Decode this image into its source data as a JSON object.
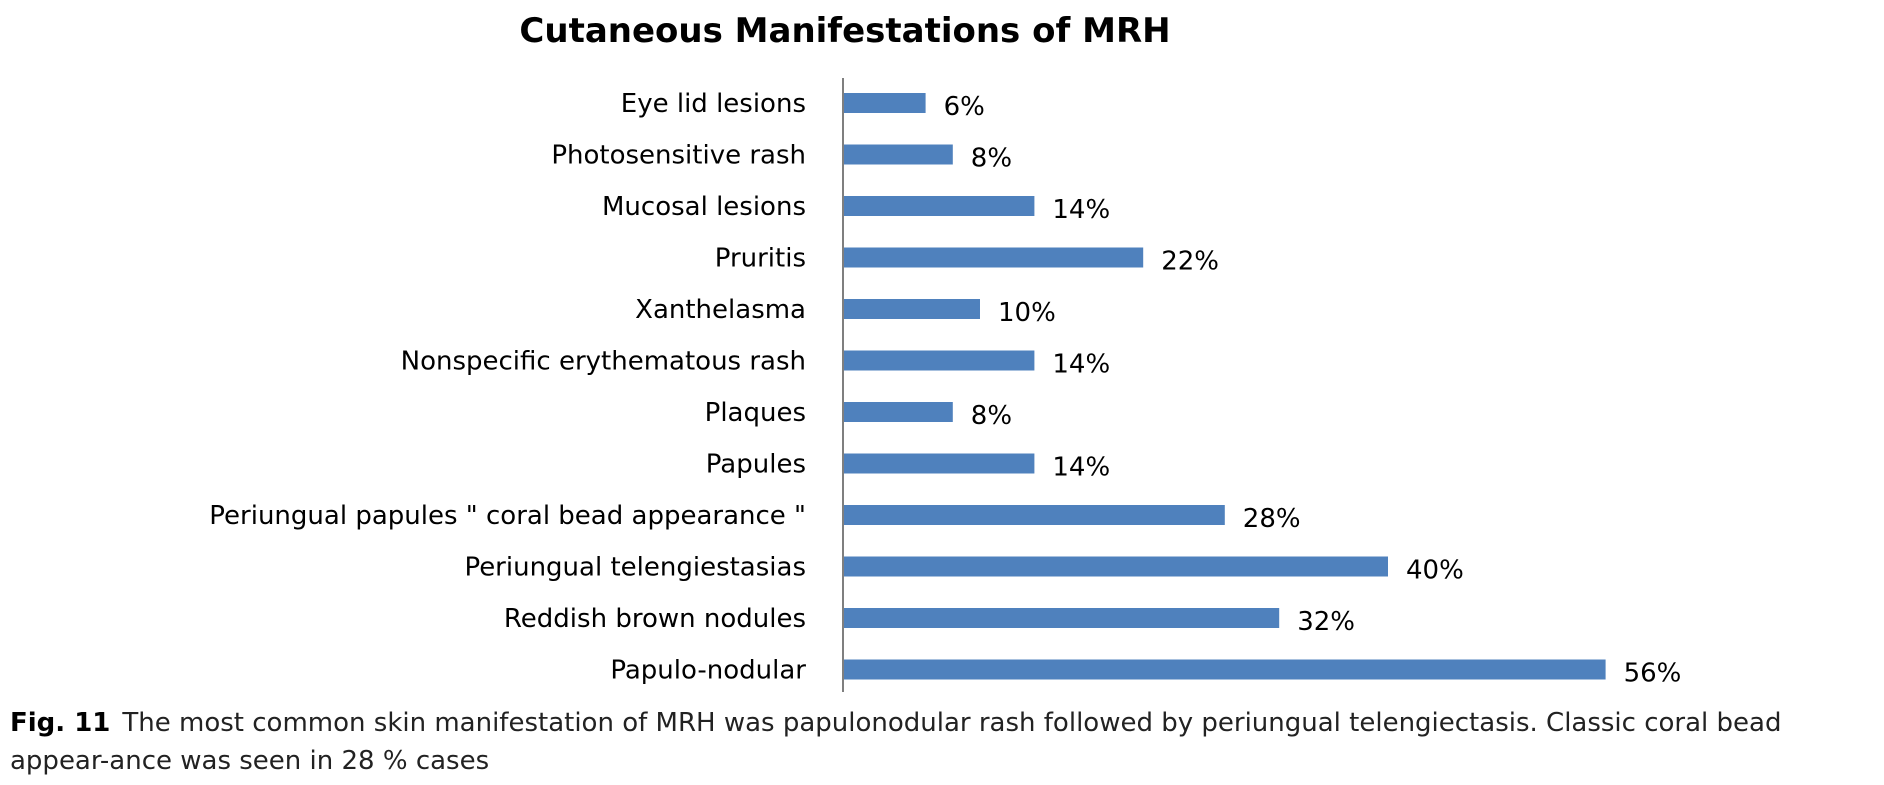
{
  "chart_data": {
    "type": "bar",
    "orientation": "horizontal",
    "title": "Cutaneous Manifestations of MRH",
    "xlabel": "",
    "ylabel": "",
    "categories": [
      "Eye lid lesions",
      "Photosensitive rash",
      "Mucosal lesions",
      "Pruritis",
      "Xanthelasma",
      "Nonspecific erythematous rash",
      "Plaques",
      "Papules",
      "Periungual papules \" coral bead appearance \"",
      "Periungual telengiestasias",
      "Reddish brown nodules",
      "Papulo-nodular"
    ],
    "values": [
      6,
      8,
      14,
      22,
      10,
      14,
      8,
      14,
      28,
      40,
      32,
      56
    ],
    "value_labels": [
      "6%",
      "8%",
      "14%",
      "22%",
      "10%",
      "14%",
      "8%",
      "14%",
      "28%",
      "40%",
      "32%",
      "56%"
    ],
    "xlim": [
      0,
      60
    ],
    "grid": false,
    "legend": "none",
    "colors": {
      "bar": "#4f81bd",
      "axis": "#7f7f7f"
    }
  },
  "caption": {
    "label": "Fig. 11",
    "text": "The most common skin manifestation of MRH was papulonodular rash followed by periungual telengiectasis. Classic coral bead appear-ance was seen in 28 % cases"
  }
}
